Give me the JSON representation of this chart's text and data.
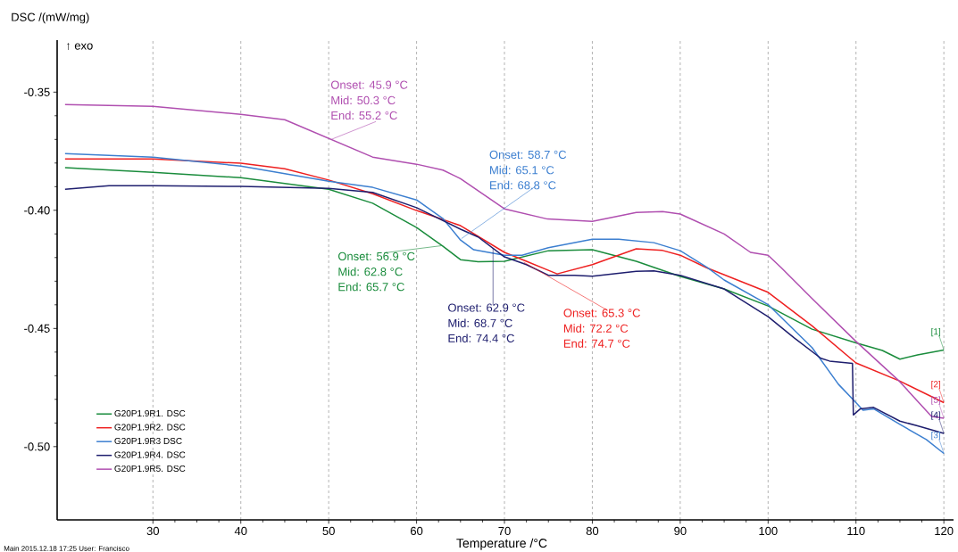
{
  "chart_data": {
    "type": "line",
    "xlabel": "Temperature /°C",
    "ylabel": "DSC /(mW/mg)",
    "xlim": [
      19.1,
      121.1
    ],
    "ylim": [
      -0.531,
      -0.328
    ],
    "xticks": [
      30,
      40,
      50,
      60,
      70,
      80,
      90,
      100,
      110,
      120
    ],
    "yticks": [
      {
        "value": -0.5,
        "label": "-0.50"
      },
      {
        "value": -0.45,
        "label": "-0.45"
      },
      {
        "value": -0.4,
        "label": "-0.40"
      },
      {
        "value": -0.35,
        "label": "-0.35"
      }
    ],
    "grid": "x",
    "legend": "bottom left",
    "series": [
      {
        "name": "G20P1.9R1. DSC",
        "color": "#1a8c3c",
        "x": [
          20,
          30,
          40,
          50,
          55,
          60,
          63,
          65,
          67,
          70,
          75,
          80,
          85,
          90,
          95,
          100,
          105,
          110,
          113,
          115,
          117,
          120
        ],
        "values": [
          -0.382,
          -0.3839,
          -0.3862,
          -0.3911,
          -0.397,
          -0.4073,
          -0.4152,
          -0.4209,
          -0.4218,
          -0.4216,
          -0.4171,
          -0.4167,
          -0.4216,
          -0.428,
          -0.4333,
          -0.4405,
          -0.4503,
          -0.4561,
          -0.4593,
          -0.463,
          -0.4612,
          -0.4591
        ]
      },
      {
        "name": "G20P1.9R2. DSC",
        "color": "#ee2020",
        "x": [
          20,
          30,
          40,
          45,
          50,
          55,
          60,
          65,
          70,
          72.5,
          75,
          76,
          80,
          85,
          88,
          90,
          93,
          100,
          105,
          110,
          115,
          120
        ],
        "values": [
          -0.3783,
          -0.3783,
          -0.3801,
          -0.3824,
          -0.3872,
          -0.393,
          -0.4001,
          -0.4065,
          -0.4178,
          -0.4216,
          -0.4254,
          -0.4269,
          -0.423,
          -0.4163,
          -0.417,
          -0.419,
          -0.4243,
          -0.4347,
          -0.4489,
          -0.4646,
          -0.4723,
          -0.4814
        ]
      },
      {
        "name": "G20P1.9R3 DSC",
        "color": "#3c7fd0",
        "x": [
          20,
          30,
          40,
          50,
          55,
          60,
          63,
          65,
          66.5,
          70,
          72,
          75,
          80,
          83,
          87,
          90,
          93.1,
          95,
          100,
          105,
          108,
          110,
          110.8,
          112,
          115,
          118,
          120
        ],
        "values": [
          -0.376,
          -0.3775,
          -0.3813,
          -0.3877,
          -0.3903,
          -0.3956,
          -0.4035,
          -0.4126,
          -0.4167,
          -0.419,
          -0.419,
          -0.4158,
          -0.4122,
          -0.4122,
          -0.4137,
          -0.4171,
          -0.4243,
          -0.4295,
          -0.4399,
          -0.4581,
          -0.4736,
          -0.4814,
          -0.4846,
          -0.484,
          -0.4906,
          -0.497,
          -0.5029
        ]
      },
      {
        "name": "G20P1.9R4. DSC",
        "color": "#1e1e6e",
        "x": [
          20,
          25,
          30,
          40,
          50,
          55,
          60,
          65,
          67,
          70,
          72.5,
          75,
          78,
          80,
          85,
          87,
          90,
          95,
          100,
          103,
          106,
          107,
          109.6,
          109.7,
          110.5,
          112,
          115,
          117,
          120
        ],
        "values": [
          -0.3911,
          -0.3896,
          -0.3896,
          -0.3899,
          -0.3907,
          -0.3924,
          -0.3989,
          -0.408,
          -0.4113,
          -0.4197,
          -0.423,
          -0.4275,
          -0.4275,
          -0.4279,
          -0.4258,
          -0.4256,
          -0.4275,
          -0.4333,
          -0.445,
          -0.4541,
          -0.4626,
          -0.4638,
          -0.4648,
          -0.4866,
          -0.484,
          -0.4834,
          -0.4892,
          -0.4912,
          -0.4944
        ]
      },
      {
        "name": "G20P1.9R5. DSC",
        "color": "#b04fb0",
        "x": [
          20,
          30,
          40,
          45,
          50,
          55,
          60,
          63,
          65,
          70,
          74.9,
          80,
          85,
          88,
          90,
          95,
          98,
          100,
          101.5,
          105,
          110,
          114.9,
          118.6,
          120
        ],
        "values": [
          -0.3553,
          -0.356,
          -0.3594,
          -0.3617,
          -0.3696,
          -0.3775,
          -0.3805,
          -0.383,
          -0.3866,
          -0.3994,
          -0.4037,
          -0.4047,
          -0.4009,
          -0.4005,
          -0.4016,
          -0.41,
          -0.4178,
          -0.419,
          -0.4243,
          -0.4373,
          -0.4555,
          -0.4722,
          -0.4872,
          -0.488
        ]
      }
    ],
    "annotations": [
      "↑ exo",
      "Main 2015.12.18 17:25 User: Francisco",
      {
        "text": "Onset: 56.9 °C",
        "x": 62.8,
        "y": -0.415
      },
      "Mid: 62.8 °C",
      "End: 65.7 °C",
      {
        "text": "Onset: 65.3 °C",
        "x": 72.2,
        "y": -0.422
      },
      "Mid: 72.2 °C",
      "End: 74.7 °C",
      {
        "text": "End: 68.8 °C",
        "x": 65.1,
        "y": -0.412
      },
      "Onset: 58.7 °C",
      "Mid: 65.1 °C",
      {
        "text": "Onset: 62.9 °C",
        "x": 68.7,
        "y": -0.416
      },
      "Mid: 68.7 °C",
      "End: 74.4 °C",
      {
        "text": "End: 55.2 °C",
        "x": 50.3,
        "y": -0.37
      },
      "Onset: 45.9 °C",
      "Mid: 50.3 °C",
      {
        "text": "[1]",
        "x": 120,
        "y": -0.4591
      },
      {
        "text": "[2]",
        "x": 120,
        "y": -0.4814
      },
      {
        "text": "[3]",
        "x": 120,
        "y": -0.5029
      },
      {
        "text": "[4]",
        "x": 120,
        "y": -0.4944
      },
      {
        "text": "[5]",
        "x": 120,
        "y": -0.488
      }
    ]
  }
}
